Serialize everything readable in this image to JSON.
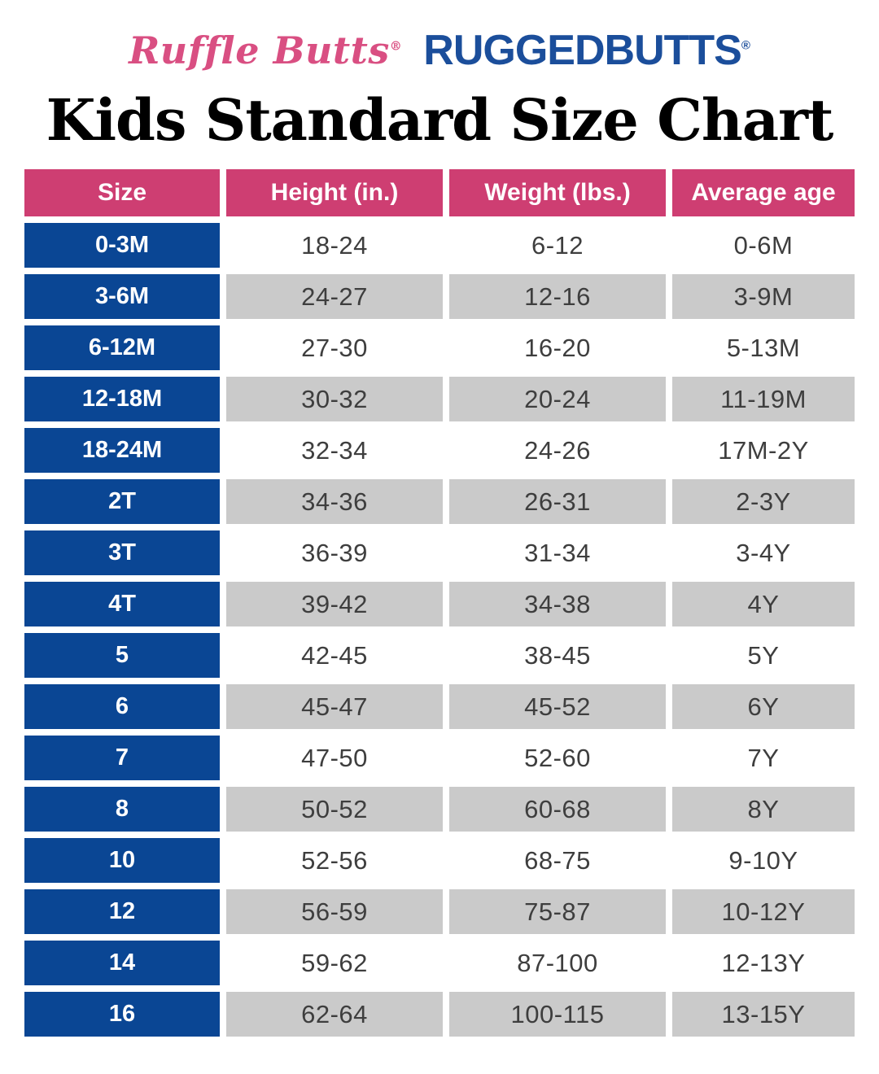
{
  "header": {
    "rufflebutts_logo": "Ruffle Butts",
    "rufflebutts_reg": "®",
    "ruggedbutts_logo": "RUGGEDBUTTS",
    "ruggedbutts_reg": "®"
  },
  "title": "Kids Standard Size Chart",
  "chart_data": {
    "type": "table",
    "title": "Kids Standard Size Chart",
    "columns": [
      "Size",
      "Height (in.)",
      "Weight (lbs.)",
      "Average age"
    ],
    "rows": [
      [
        "0-3M",
        "18-24",
        "6-12",
        "0-6M"
      ],
      [
        "3-6M",
        "24-27",
        "12-16",
        "3-9M"
      ],
      [
        "6-12M",
        "27-30",
        "16-20",
        "5-13M"
      ],
      [
        "12-18M",
        "30-32",
        "20-24",
        "11-19M"
      ],
      [
        "18-24M",
        "32-34",
        "24-26",
        "17M-2Y"
      ],
      [
        "2T",
        "34-36",
        "26-31",
        "2-3Y"
      ],
      [
        "3T",
        "36-39",
        "31-34",
        "3-4Y"
      ],
      [
        "4T",
        "39-42",
        "34-38",
        "4Y"
      ],
      [
        "5",
        "42-45",
        "38-45",
        "5Y"
      ],
      [
        "6",
        "45-47",
        "45-52",
        "6Y"
      ],
      [
        "7",
        "47-50",
        "52-60",
        "7Y"
      ],
      [
        "8",
        "50-52",
        "60-68",
        "8Y"
      ],
      [
        "10",
        "52-56",
        "68-75",
        "9-10Y"
      ],
      [
        "12",
        "56-59",
        "75-87",
        "10-12Y"
      ],
      [
        "14",
        "59-62",
        "87-100",
        "12-13Y"
      ],
      [
        "16",
        "62-64",
        "100-115",
        "13-15Y"
      ]
    ],
    "layout": {
      "row_shading": "alternating white and gray, first data row white",
      "legend": "none",
      "grid": "cells separated by white gaps"
    }
  },
  "colors": {
    "header_pink": "#ce3e72",
    "size_column_blue": "#0a4694",
    "shaded_row_gray": "#cacaca",
    "data_text": "#3e3e3e",
    "logo_pink": "#d94f82",
    "logo_navy": "#1b4e9b",
    "title_black": "#000000"
  }
}
